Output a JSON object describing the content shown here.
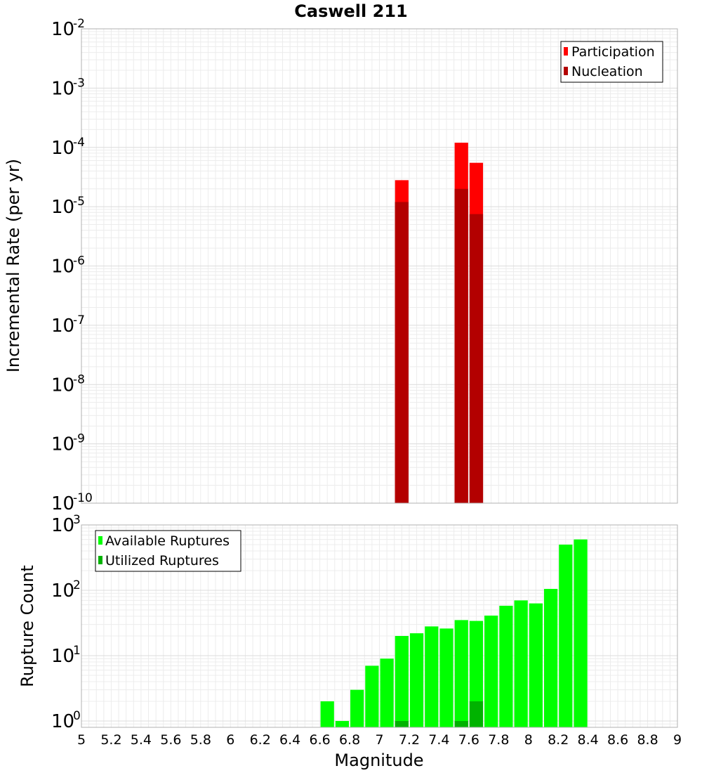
{
  "chart_data": [
    {
      "type": "bar",
      "title": "Caswell 211",
      "xlabel": "",
      "ylabel": "Incremental Rate (per yr)",
      "yscale": "log",
      "xlim": [
        5,
        9
      ],
      "ylim": [
        1e-10,
        0.01
      ],
      "y_tick_exponents": [
        -10,
        -9,
        -8,
        -7,
        -6,
        -5,
        -4,
        -3,
        -2
      ],
      "bin_width": 0.1,
      "grid": true,
      "legend_position": "top-right",
      "colors": {
        "Participation": "#ff0000",
        "Nucleation": "#b30000"
      },
      "series": [
        {
          "name": "Participation",
          "x": [
            7.15,
            7.55,
            7.65
          ],
          "values": [
            2.8e-05,
            0.00012,
            5.5e-05
          ]
        },
        {
          "name": "Nucleation",
          "x": [
            7.15,
            7.55,
            7.65
          ],
          "values": [
            1.2e-05,
            2e-05,
            7.5e-06
          ]
        }
      ]
    },
    {
      "type": "bar",
      "title": "",
      "xlabel": "Magnitude",
      "ylabel": "Rupture Count",
      "yscale": "log",
      "xlim": [
        5,
        9
      ],
      "ylim": [
        0.8,
        1000
      ],
      "y_tick_exponents": [
        0,
        1,
        2,
        3
      ],
      "bin_width": 0.1,
      "grid": true,
      "legend_position": "top-left",
      "colors": {
        "Available Ruptures": "#00ff00",
        "Utilized Ruptures": "#00b300"
      },
      "x_ticks": [
        "5",
        "5.2",
        "5.4",
        "5.6",
        "5.8",
        "6",
        "6.2",
        "6.4",
        "6.6",
        "6.8",
        "7",
        "7.2",
        "7.4",
        "7.6",
        "7.8",
        "8",
        "8.2",
        "8.4",
        "8.6",
        "8.8",
        "9"
      ],
      "series": [
        {
          "name": "Available Ruptures",
          "x": [
            6.65,
            6.75,
            6.85,
            6.95,
            7.05,
            7.15,
            7.25,
            7.35,
            7.45,
            7.55,
            7.65,
            7.75,
            7.85,
            7.95,
            8.05,
            8.15,
            8.25,
            8.35
          ],
          "values": [
            2,
            1,
            3,
            7,
            9,
            20,
            22,
            28,
            26,
            35,
            34,
            41,
            58,
            70,
            63,
            105,
            500,
            600
          ]
        },
        {
          "name": "Utilized Ruptures",
          "x": [
            7.15,
            7.55,
            7.65
          ],
          "values": [
            1,
            1,
            2
          ]
        }
      ]
    }
  ]
}
